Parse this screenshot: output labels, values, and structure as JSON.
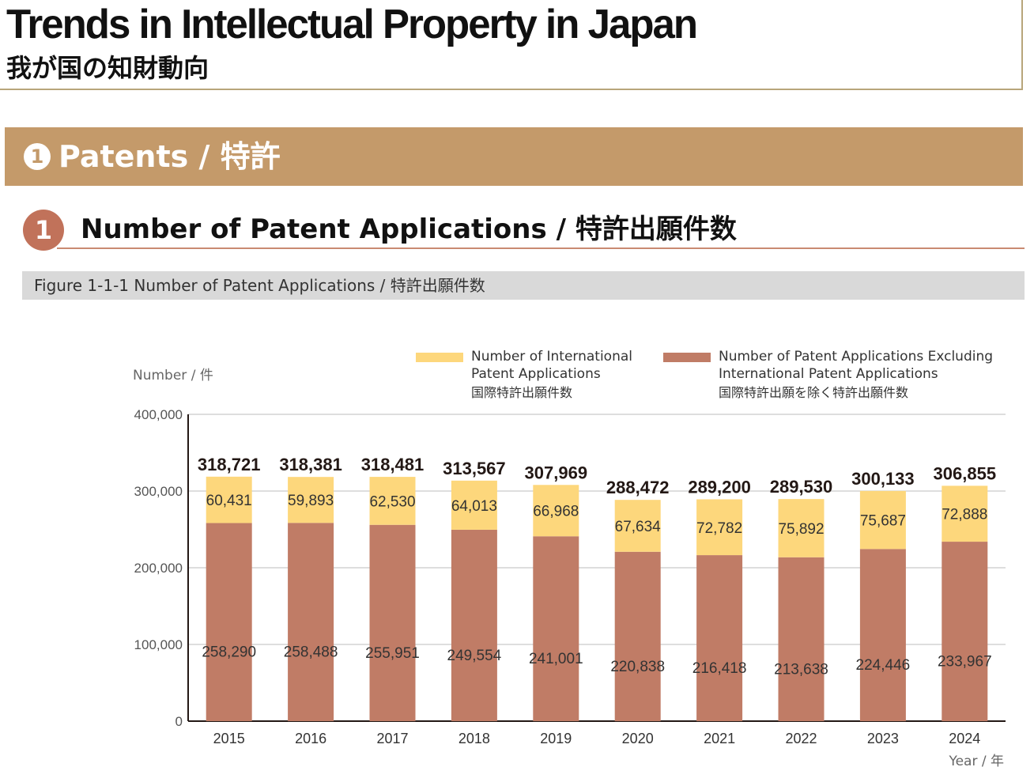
{
  "header": {
    "title_en": "Trends in Intellectual Property in Japan",
    "title_jp": "我が国の知財動向"
  },
  "section": {
    "number": "1",
    "label": "Patents / 特許"
  },
  "subsection": {
    "number": "1",
    "title": "Number of Patent Applications / 特許出願件数"
  },
  "figure": {
    "caption": "Figure 1-1-1  Number of Patent Applications / 特許出願件数"
  },
  "colors": {
    "accent_section": "#c49a6a",
    "accent_subsection": "#c1725a",
    "international": "#fdd77c",
    "domestic": "#c07c66"
  },
  "chart_data": {
    "type": "bar",
    "stacked": true,
    "ylabel": "Number / 件",
    "xlabel": "Year / 年",
    "ylim": [
      0,
      400000
    ],
    "yticks": [
      "0",
      "100,000",
      "200,000",
      "300,000",
      "400,000"
    ],
    "grid": true,
    "legend_position": "top-right",
    "categories": [
      "2015",
      "2016",
      "2017",
      "2018",
      "2019",
      "2020",
      "2021",
      "2022",
      "2023",
      "2024"
    ],
    "series": [
      {
        "name": "Number of Patent Applications Excluding International Patent Applications",
        "name_line1": "Number of Patent Applications Excluding",
        "name_line2": "International Patent Applications",
        "name_jp": "国際特許出願を除く特許出願件数",
        "values": [
          258290,
          258488,
          255951,
          249554,
          241001,
          220838,
          216418,
          213638,
          224446,
          233967
        ],
        "labels": [
          "258,290",
          "258,488",
          "255,951",
          "249,554",
          "241,001",
          "220,838",
          "216,418",
          "213,638",
          "224,446",
          "233,967"
        ]
      },
      {
        "name": "Number of International Patent Applications",
        "name_line1": "Number of International",
        "name_line2": "Patent Applications",
        "name_jp": "国際特許出願件数",
        "values": [
          60431,
          59893,
          62530,
          64013,
          66968,
          67634,
          72782,
          75892,
          75687,
          72888
        ],
        "labels": [
          "60,431",
          "59,893",
          "62,530",
          "64,013",
          "66,968",
          "67,634",
          "72,782",
          "75,892",
          "75,687",
          "72,888"
        ]
      }
    ],
    "totals": [
      318721,
      318381,
      318481,
      313567,
      307969,
      288472,
      289200,
      289530,
      300133,
      306855
    ],
    "total_labels": [
      "318,721",
      "318,381",
      "318,481",
      "313,567",
      "307,969",
      "288,472",
      "289,200",
      "289,530",
      "300,133",
      "306,855"
    ]
  }
}
